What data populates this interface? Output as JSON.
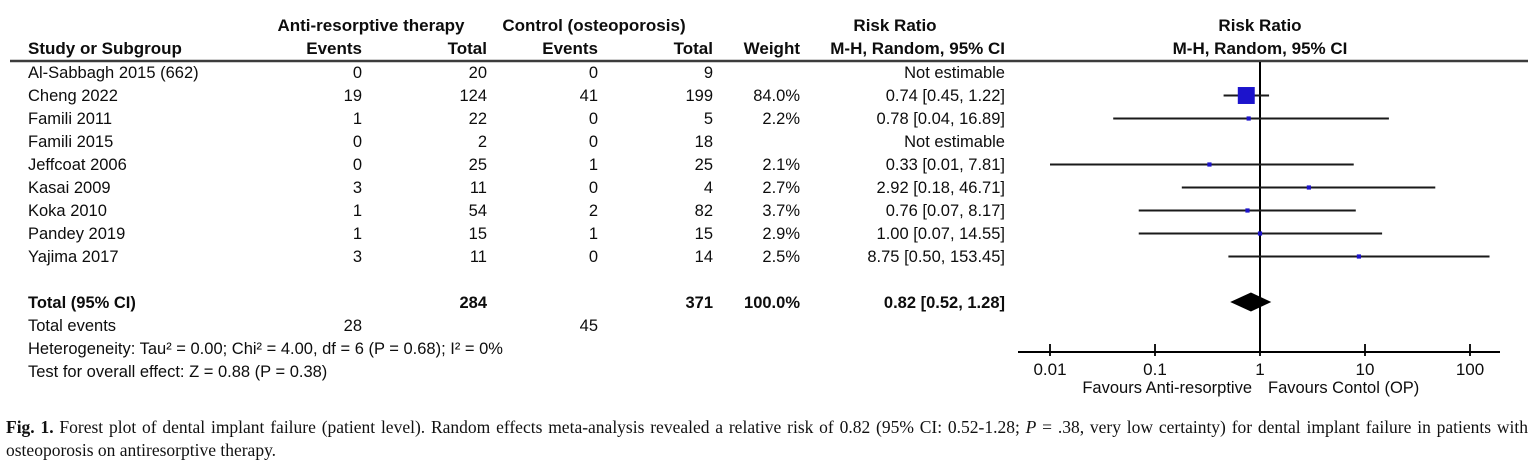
{
  "figure": {
    "header": {
      "group_experimental": "Anti-resorptive therapy",
      "group_control": "Control (osteoporosis)",
      "group_rr_text": "Risk Ratio",
      "group_rr_plot": "Risk Ratio",
      "col_study": "Study or Subgroup",
      "col_events": "Events",
      "col_total": "Total",
      "col_weight": "Weight",
      "col_mh_random": "M-H, Random, 95% CI"
    }
  },
  "chart_data": {
    "type": "forest",
    "scale": "log10",
    "x_range": [
      0.01,
      100
    ],
    "x_ticks": [
      "0.01",
      "0.1",
      "1",
      "10",
      "100"
    ],
    "null_line": 1,
    "favours_left": "Favours Anti-resorptive",
    "favours_right": "Favours Contol (OP)",
    "marker_color": "#1c13cc",
    "line_color": "#1a1a1a",
    "studies": [
      {
        "name": "Al-Sabbagh 2015 (662)",
        "exp_events": "0",
        "exp_total": "20",
        "ctl_events": "0",
        "ctl_total": "9",
        "weight_label": "",
        "weight": null,
        "rr_label": "Not estimable",
        "rr": null,
        "ci_low": null,
        "ci_high": null
      },
      {
        "name": "Cheng 2022",
        "exp_events": "19",
        "exp_total": "124",
        "ctl_events": "41",
        "ctl_total": "199",
        "weight_label": "84.0%",
        "weight": 84.0,
        "rr_label": "0.74 [0.45, 1.22]",
        "rr": 0.74,
        "ci_low": 0.45,
        "ci_high": 1.22
      },
      {
        "name": "Famili 2011",
        "exp_events": "1",
        "exp_total": "22",
        "ctl_events": "0",
        "ctl_total": "5",
        "weight_label": "2.2%",
        "weight": 2.2,
        "rr_label": "0.78 [0.04, 16.89]",
        "rr": 0.78,
        "ci_low": 0.04,
        "ci_high": 16.89
      },
      {
        "name": "Famili 2015",
        "exp_events": "0",
        "exp_total": "2",
        "ctl_events": "0",
        "ctl_total": "18",
        "weight_label": "",
        "weight": null,
        "rr_label": "Not estimable",
        "rr": null,
        "ci_low": null,
        "ci_high": null
      },
      {
        "name": "Jeffcoat 2006",
        "exp_events": "0",
        "exp_total": "25",
        "ctl_events": "1",
        "ctl_total": "25",
        "weight_label": "2.1%",
        "weight": 2.1,
        "rr_label": "0.33 [0.01, 7.81]",
        "rr": 0.33,
        "ci_low": 0.01,
        "ci_high": 7.81
      },
      {
        "name": "Kasai 2009",
        "exp_events": "3",
        "exp_total": "11",
        "ctl_events": "0",
        "ctl_total": "4",
        "weight_label": "2.7%",
        "weight": 2.7,
        "rr_label": "2.92 [0.18, 46.71]",
        "rr": 2.92,
        "ci_low": 0.18,
        "ci_high": 46.71
      },
      {
        "name": "Koka 2010",
        "exp_events": "1",
        "exp_total": "54",
        "ctl_events": "2",
        "ctl_total": "82",
        "weight_label": "3.7%",
        "weight": 3.7,
        "rr_label": "0.76 [0.07, 8.17]",
        "rr": 0.76,
        "ci_low": 0.07,
        "ci_high": 8.17
      },
      {
        "name": "Pandey 2019",
        "exp_events": "1",
        "exp_total": "15",
        "ctl_events": "1",
        "ctl_total": "15",
        "weight_label": "2.9%",
        "weight": 2.9,
        "rr_label": "1.00 [0.07, 14.55]",
        "rr": 1.0,
        "ci_low": 0.07,
        "ci_high": 14.55
      },
      {
        "name": "Yajima 2017",
        "exp_events": "3",
        "exp_total": "11",
        "ctl_events": "0",
        "ctl_total": "14",
        "weight_label": "2.5%",
        "weight": 2.5,
        "rr_label": "8.75 [0.50, 153.45]",
        "rr": 8.75,
        "ci_low": 0.5,
        "ci_high": 153.45
      }
    ],
    "total": {
      "label": "Total (95% CI)",
      "exp_total": "284",
      "ctl_total": "371",
      "weight_label": "100.0%",
      "rr_label": "0.82 [0.52, 1.28]",
      "rr": 0.82,
      "ci_low": 0.52,
      "ci_high": 1.28
    },
    "total_events": {
      "label": "Total events",
      "exp": "28",
      "ctl": "45"
    },
    "heterogeneity": "Heterogeneity: Tau² = 0.00; Chi² = 4.00, df = 6 (P = 0.68); I² = 0%",
    "overall_effect": "Test for overall effect: Z = 0.88 (P = 0.38)"
  },
  "caption": {
    "segments": [
      {
        "text": "Fig. 1.",
        "bold": true
      },
      {
        "text": " Forest plot of dental implant failure (patient level). Random effects meta-analysis revealed a relative risk of 0.82 (95% CI: 0.52-1.28; "
      },
      {
        "text": "P",
        "italic": true
      },
      {
        "text": " = .38, very low certainty) for dental implant failure in patients with osteoporosis on antiresorptive therapy."
      }
    ]
  }
}
